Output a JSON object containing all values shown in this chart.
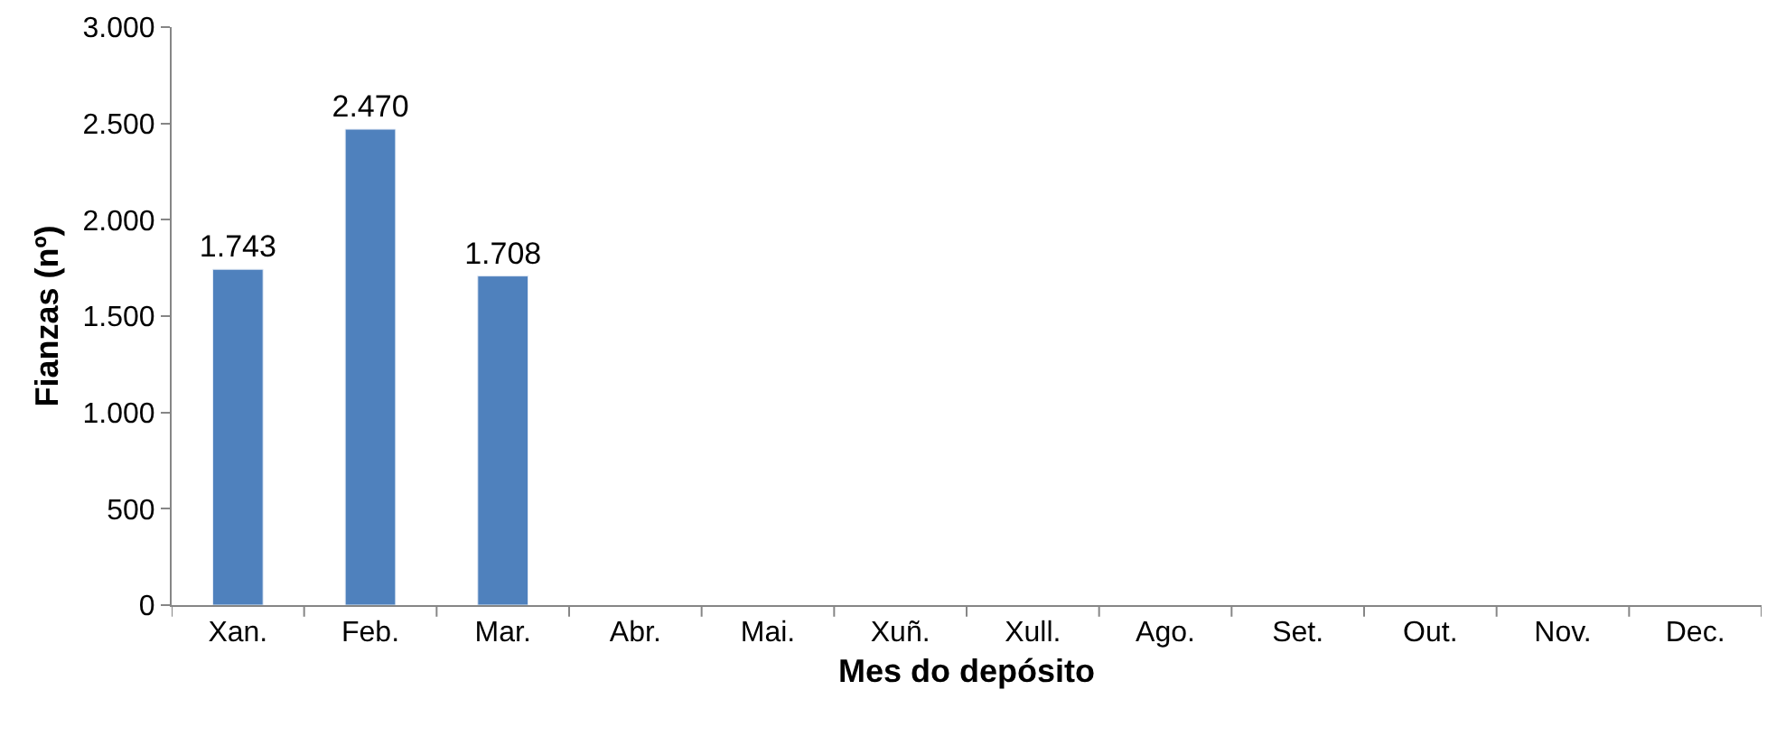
{
  "chart_data": {
    "type": "bar",
    "xlabel": "Mes do depósito",
    "ylabel": "Fianzas (nº)",
    "categories": [
      "Xan.",
      "Feb.",
      "Mar.",
      "Abr.",
      "Mai.",
      "Xuñ.",
      "Xull.",
      "Ago.",
      "Set.",
      "Out.",
      "Nov.",
      "Dec."
    ],
    "values": [
      1743,
      2470,
      1708,
      null,
      null,
      null,
      null,
      null,
      null,
      null,
      null,
      null
    ],
    "value_labels": [
      "1.743",
      "2.470",
      "1.708",
      null,
      null,
      null,
      null,
      null,
      null,
      null,
      null,
      null
    ],
    "color": "#4f81bd",
    "ylim": [
      0,
      3000
    ],
    "yticks": [
      {
        "value": 0,
        "label": "0"
      },
      {
        "value": 500,
        "label": "500"
      },
      {
        "value": 1000,
        "label": "1.000"
      },
      {
        "value": 1500,
        "label": "1.500"
      },
      {
        "value": 2000,
        "label": "2.000"
      },
      {
        "value": 2500,
        "label": "2.500"
      },
      {
        "value": 3000,
        "label": "3.000"
      }
    ],
    "grid": false
  }
}
